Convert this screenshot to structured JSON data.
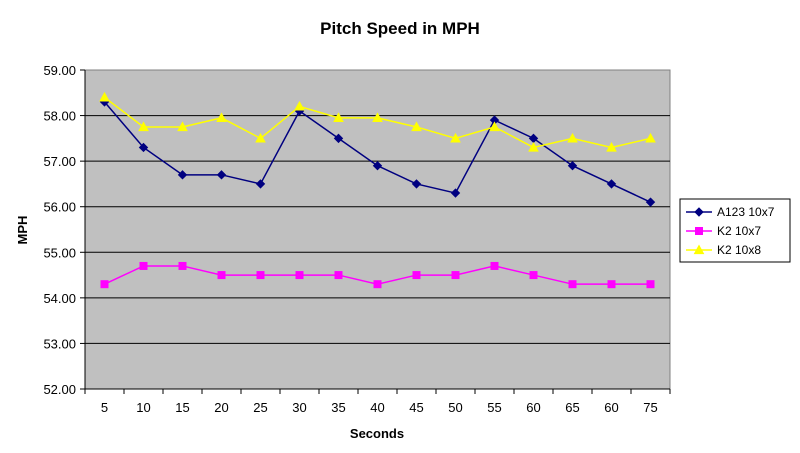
{
  "chart_data": {
    "type": "line",
    "title": "Pitch Speed in MPH",
    "xlabel": "Seconds",
    "ylabel": "MPH",
    "categories": [
      "5",
      "10",
      "15",
      "20",
      "25",
      "30",
      "35",
      "40",
      "45",
      "50",
      "55",
      "60",
      "65",
      "60",
      "75"
    ],
    "ylim": [
      52,
      59
    ],
    "yticks": [
      "52.00",
      "53.00",
      "54.00",
      "55.00",
      "56.00",
      "57.00",
      "58.00",
      "59.00"
    ],
    "grid": true,
    "legend_position": "right",
    "plot_background": "#c0c0c0",
    "series": [
      {
        "name": "A123 10x7",
        "color": "#000080",
        "marker": "diamond",
        "values": [
          58.3,
          57.3,
          56.7,
          56.7,
          56.5,
          58.1,
          57.5,
          56.9,
          56.5,
          56.3,
          57.9,
          57.5,
          56.9,
          56.5,
          56.1
        ]
      },
      {
        "name": "K2 10x7",
        "color": "#ff00ff",
        "marker": "square",
        "values": [
          54.3,
          54.7,
          54.7,
          54.5,
          54.5,
          54.5,
          54.5,
          54.3,
          54.5,
          54.5,
          54.7,
          54.5,
          54.3,
          54.3,
          54.3
        ]
      },
      {
        "name": "K2 10x8",
        "color": "#ffff00",
        "marker": "triangle",
        "values": [
          58.4,
          57.75,
          57.75,
          57.95,
          57.5,
          58.2,
          57.95,
          57.95,
          57.75,
          57.5,
          57.75,
          57.3,
          57.5,
          57.3,
          57.5
        ]
      }
    ]
  }
}
